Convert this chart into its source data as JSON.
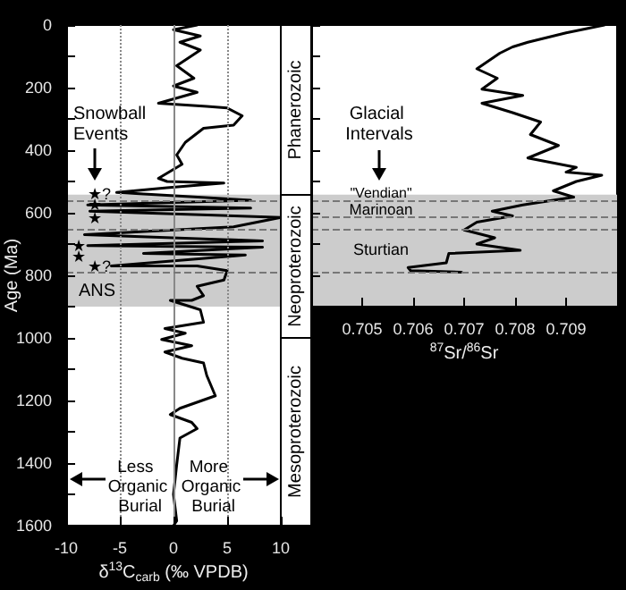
{
  "chart_data": [
    {
      "type": "line",
      "xlabel": "δ$^{13}$C$_{carb}$ (‰ VPDB)",
      "ylabel": "Age (Ma)",
      "xlim": [
        -10,
        10
      ],
      "xticks": [
        -10,
        -5,
        0,
        5,
        10
      ],
      "ylim": [
        1600,
        0
      ],
      "yticks": [
        0,
        {
          "value": 100,
          "label": null
        },
        200,
        {
          "value": 300,
          "label": null
        },
        400,
        {
          "value": 500,
          "label": null
        },
        600,
        {
          "value": 700,
          "label": null
        },
        800,
        {
          "value": 900,
          "label": null
        },
        1000,
        {
          "value": 1100,
          "label": null
        },
        1200,
        {
          "value": 1300,
          "label": null
        },
        1400,
        {
          "value": 1500,
          "label": null
        },
        1600
      ],
      "marker": "none",
      "line_style": "solid",
      "series": [
        {
          "color": "#000000",
          "x": [
            2.2,
            0,
            2.5,
            0.6,
            2.5,
            0.3,
            1.9,
            0,
            2.2,
            -1.4,
            3.1,
            5,
            6.4,
            5.6,
            2.8,
            1.1,
            0.3,
            0.8,
            -1.4,
            -0.6,
            4.7,
            -0.6,
            -5.3,
            7.2,
            -8,
            7.2,
            -7.8,
            10,
            5.6,
            -8.3,
            8.3,
            -8,
            8.3,
            -2.8,
            6.7,
            -5.8,
            2.2,
            5,
            4.7,
            2.2,
            2.8,
            1.7,
            -0.3,
            2.5,
            2.8,
            -0.8,
            1.1,
            -1.1,
            1.7,
            -0.8,
            0.8,
            2.8,
            3.1,
            3.9,
            0.6,
            -0.3,
            1.7,
            2.2,
            0.6,
            0.3,
            0,
            0.3,
            0
          ],
          "values": [
            0,
            15,
            35,
            55,
            80,
            130,
            170,
            195,
            215,
            250,
            260,
            265,
            290,
            320,
            330,
            375,
            415,
            445,
            490,
            500,
            505,
            520,
            535,
            560,
            575,
            585,
            595,
            615,
            645,
            670,
            690,
            705,
            710,
            730,
            735,
            770,
            770,
            785,
            815,
            835,
            865,
            880,
            880,
            910,
            950,
            970,
            985,
            1005,
            1025,
            1045,
            1065,
            1080,
            1120,
            1185,
            1225,
            1245,
            1270,
            1290,
            1320,
            1405,
            1500,
            1585,
            1600
          ]
        }
      ],
      "ref_lines": [
        {
          "axis": "x",
          "value": -5,
          "line_style": "dotted",
          "color": "#888888"
        },
        {
          "axis": "x",
          "value": 0,
          "line_style": "solid",
          "color": "#888888"
        },
        {
          "axis": "x",
          "value": 5,
          "line_style": "dotted",
          "color": "#888888"
        },
        {
          "axis": "y",
          "value": 560,
          "line_style": "dashed",
          "color": "#777777"
        },
        {
          "axis": "y",
          "value": 650,
          "line_style": "dashed",
          "color": "#777777"
        },
        {
          "axis": "y",
          "value": 790,
          "line_style": "dashed",
          "color": "#777777"
        }
      ],
      "bands": [
        {
          "axis": "y",
          "from": 542,
          "to": 900,
          "color": "#cccccc"
        }
      ],
      "annotations": [
        "Snowball Events",
        "ANS",
        "Less Organic Burial",
        "More Organic Burial",
        "★?",
        "★",
        "★",
        "★",
        "★",
        "★?",
        "Phanerozoic",
        "Neoproterozoic",
        "Mesoproterozoic"
      ]
    },
    {
      "type": "line",
      "xlabel": "$^{87}$Sr/$^{86}$Sr",
      "xlim": [
        0.704,
        0.71
      ],
      "xticks": [
        0.705,
        0.706,
        0.707,
        0.708,
        0.709
      ],
      "ylim": [
        900,
        0
      ],
      "yticks": [
        0,
        {
          "value": 100,
          "label": null
        },
        200,
        {
          "value": 300,
          "label": null
        },
        400,
        {
          "value": 500,
          "label": null
        },
        600,
        {
          "value": 700,
          "label": null
        },
        800,
        {
          "value": 900,
          "label": null
        }
      ],
      "tick_labels": "x",
      "marker": "none",
      "line_style": "solid",
      "series": [
        {
          "color": "#000000",
          "x": [
            0.70975,
            0.709,
            0.70825,
            0.70795,
            0.7077,
            0.70725,
            0.70765,
            0.70735,
            0.70815,
            0.70735,
            0.70795,
            0.7085,
            0.7083,
            0.70885,
            0.70825,
            0.7092,
            0.709,
            0.7097,
            0.7092,
            0.70875,
            0.70915,
            0.70875,
            0.70815,
            0.70755,
            0.70795,
            0.70725,
            0.707,
            0.7076,
            0.70725,
            0.7081,
            0.7067,
            0.70665,
            0.7059,
            0.70595,
            0.70695
          ],
          "values": [
            0,
            25,
            55,
            70,
            90,
            140,
            170,
            205,
            225,
            250,
            280,
            310,
            350,
            385,
            425,
            455,
            470,
            480,
            500,
            530,
            550,
            560,
            575,
            595,
            610,
            630,
            655,
            680,
            700,
            720,
            730,
            760,
            775,
            785,
            790
          ]
        }
      ],
      "ref_lines": [
        {
          "axis": "y",
          "value": 560,
          "line_style": "dashed",
          "color": "#777777"
        },
        {
          "axis": "y",
          "value": 610,
          "line_style": "dashed",
          "color": "#777777"
        },
        {
          "axis": "y",
          "value": 650,
          "line_style": "dashed",
          "color": "#777777"
        },
        {
          "axis": "y",
          "value": 790,
          "line_style": "dashed",
          "color": "#777777"
        }
      ],
      "bands": [
        {
          "axis": "y",
          "from": 542,
          "to": 900,
          "color": "#cccccc"
        }
      ],
      "annotations": [
        "Glacial Intervals",
        "\"Vendian\"",
        "Marinoan",
        "Sturtian"
      ]
    }
  ]
}
